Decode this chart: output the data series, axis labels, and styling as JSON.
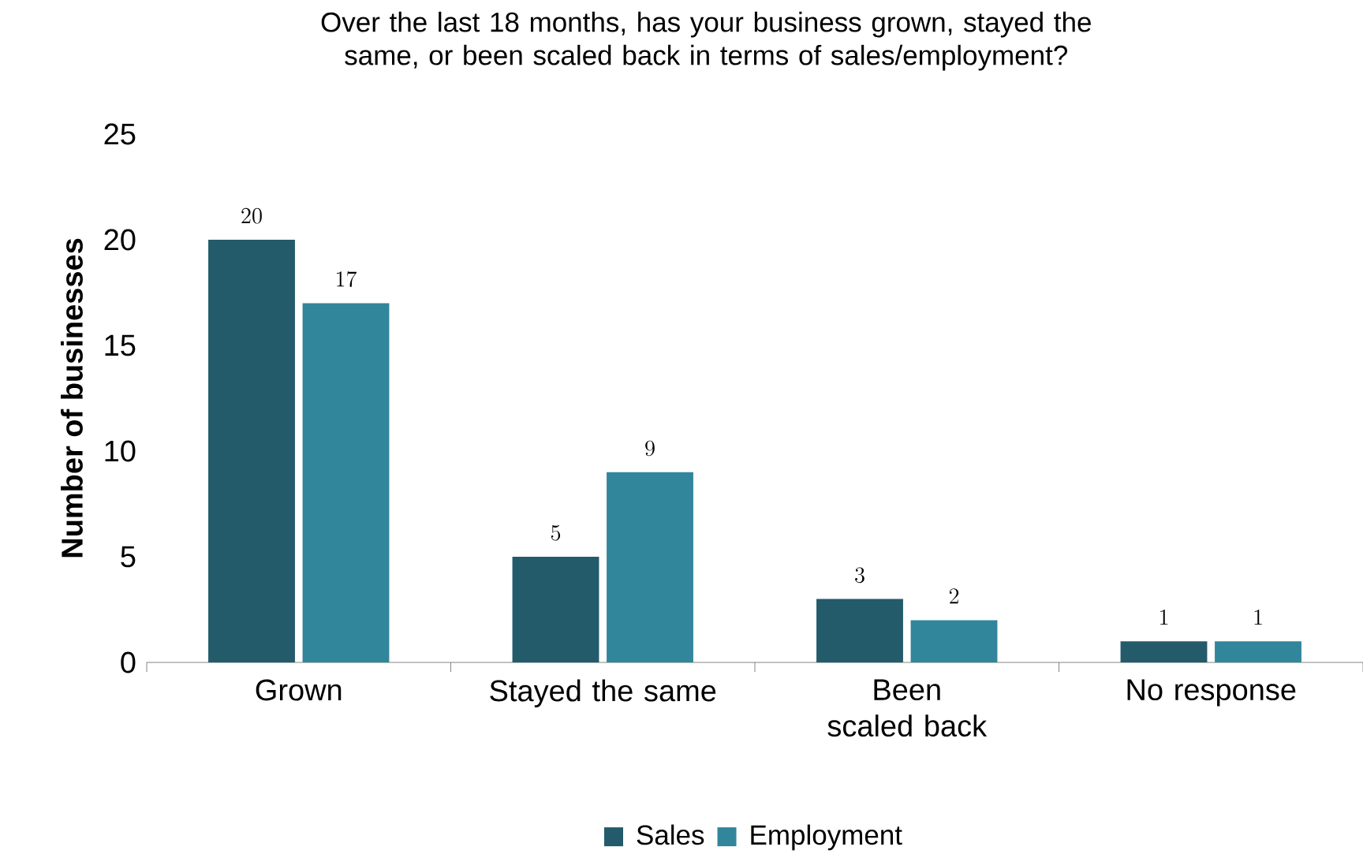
{
  "chart_data": {
    "type": "bar",
    "title": "Over the last 18 months, has your business grown, stayed the same, or been scaled back in terms of sales/employment?",
    "ylabel": "Number of businesses",
    "categories": [
      "Grown",
      "Stayed the same",
      "Been scaled back",
      "No response"
    ],
    "series": [
      {
        "name": "Sales",
        "color": "#235b6a",
        "values": [
          20,
          5,
          3,
          1
        ]
      },
      {
        "name": "Employment",
        "color": "#31869b",
        "values": [
          17,
          9,
          2,
          1
        ]
      }
    ],
    "ylim": [
      0,
      25
    ],
    "yticks": [
      0,
      5,
      10,
      15,
      20,
      25
    ],
    "grid": false,
    "legend": "bottom",
    "data_labels": true
  }
}
